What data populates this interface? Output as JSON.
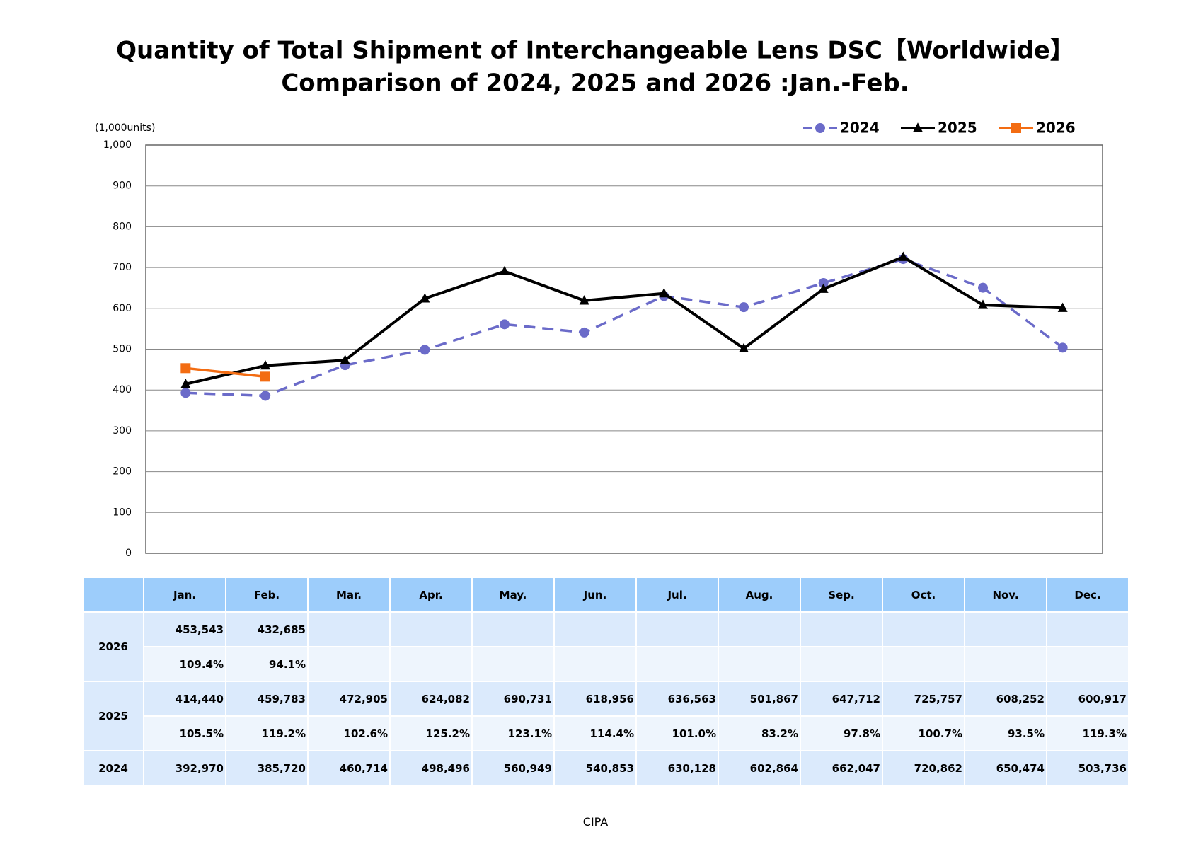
{
  "chart_data": {
    "type": "line",
    "title": "Quantity of Total Shipment of Interchangeable Lens DSC【Worldwide】",
    "subtitle": "Comparison of 2024, 2025 and 2026 :Jan.-Feb.",
    "y_label": "(1,000units)",
    "categories": [
      "Jan.",
      "Feb.",
      "Mar.",
      "Apr.",
      "May.",
      "Jun.",
      "Jul.",
      "Aug.",
      "Sep.",
      "Oct.",
      "Nov.",
      "Dec."
    ],
    "series": [
      {
        "name": "2024",
        "color": "#6b6bc9",
        "marker": "circle",
        "dashed": true,
        "values": [
          392.97,
          385.72,
          460.714,
          498.496,
          560.949,
          540.853,
          630.128,
          602.864,
          662.047,
          720.862,
          650.474,
          503.736
        ]
      },
      {
        "name": "2025",
        "color": "#000000",
        "marker": "triangle",
        "dashed": false,
        "values": [
          414.44,
          459.783,
          472.905,
          624.082,
          690.731,
          618.956,
          636.563,
          501.867,
          647.712,
          725.757,
          608.252,
          600.917
        ]
      },
      {
        "name": "2026",
        "color": "#f36c12",
        "marker": "square",
        "dashed": false,
        "values": [
          453.543,
          432.685,
          null,
          null,
          null,
          null,
          null,
          null,
          null,
          null,
          null,
          null
        ]
      }
    ],
    "ylim": [
      0,
      1000
    ],
    "yticks": [
      0,
      100,
      200,
      300,
      400,
      500,
      600,
      700,
      800,
      900,
      {
        "value": 1000,
        "label": "1,000"
      }
    ],
    "grid": true,
    "legend": "top-right"
  },
  "table": {
    "groups": [
      {
        "label": "2026",
        "rows": [
          [
            "453,543",
            "432,685"
          ],
          [
            "109.4%",
            "94.1%"
          ]
        ]
      },
      {
        "label": "2025",
        "rows": [
          [
            "414,440",
            "459,783",
            "472,905",
            "624,082",
            "690,731",
            "618,956",
            "636,563",
            "501,867",
            "647,712",
            "725,757",
            "608,252",
            "600,917"
          ],
          [
            "105.5%",
            "119.2%",
            "102.6%",
            "125.2%",
            "123.1%",
            "114.4%",
            "101.0%",
            "83.2%",
            "97.8%",
            "100.7%",
            "93.5%",
            "119.3%"
          ]
        ]
      },
      {
        "label": "2024",
        "rows": [
          [
            "392,970",
            "385,720",
            "460,714",
            "498,496",
            "560,949",
            "540,853",
            "630,128",
            "602,864",
            "662,047",
            "720,862",
            "650,474",
            "503,736"
          ]
        ]
      }
    ]
  },
  "footer": "CIPA"
}
